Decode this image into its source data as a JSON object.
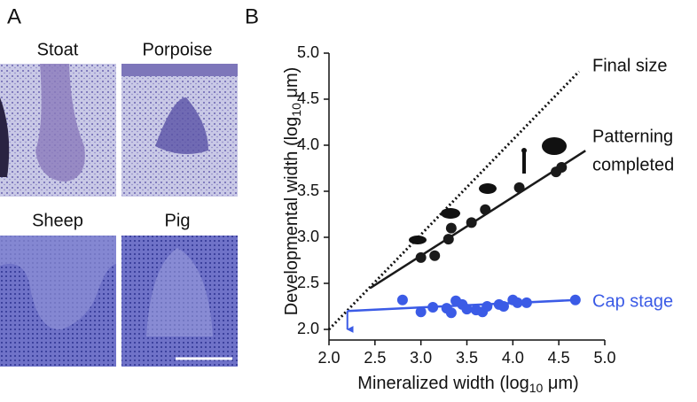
{
  "panel_a": {
    "label": "A",
    "images": [
      {
        "label": "Stoat"
      },
      {
        "label": "Porpoise"
      },
      {
        "label": "Sheep"
      },
      {
        "label": "Pig"
      }
    ]
  },
  "chart_data": {
    "type": "scatter",
    "panel_label": "B",
    "xlabel": {
      "text": "Mineralized width (log",
      "sub": "10",
      "tail": " μm)"
    },
    "ylabel": {
      "text": "Developmental width (log",
      "sub": "10",
      "tail": " μm)"
    },
    "xlim": [
      2.0,
      5.0
    ],
    "ylim": [
      2.0,
      5.0
    ],
    "xticks": [
      {
        "value": 2,
        "label": "2.0"
      },
      {
        "value": 2.5,
        "label": "2.5"
      },
      {
        "value": 3,
        "label": "3.0"
      },
      {
        "value": 3.5,
        "label": "3.5"
      },
      {
        "value": 4,
        "label": "4.0"
      },
      {
        "value": 4.5,
        "label": "4.5"
      },
      {
        "value": 5,
        "label": "5.0"
      }
    ],
    "yticks": [
      {
        "value": 2,
        "label": "2.0"
      },
      {
        "value": 2.5,
        "label": "2.5"
      },
      {
        "value": 3,
        "label": "3.0"
      },
      {
        "value": 3.5,
        "label": "3.5"
      },
      {
        "value": 4,
        "label": "4.0"
      },
      {
        "value": 4.5,
        "label": "4.5"
      },
      {
        "value": 5,
        "label": "5.0"
      }
    ],
    "reference": {
      "name": "Final size",
      "x": [
        2.0,
        4.72
      ],
      "values": [
        2.0,
        4.8
      ]
    },
    "series": [
      {
        "name": [
          "Patterning",
          "completed"
        ],
        "color": "#1a1a1a",
        "x": [
          3.0,
          3.15,
          3.3,
          3.33,
          3.55,
          3.7,
          4.07,
          4.47,
          4.53
        ],
        "values": [
          2.78,
          2.8,
          2.98,
          3.1,
          3.16,
          3.3,
          3.54,
          3.71,
          3.76
        ],
        "fit": {
          "x": [
            2.45,
            4.79
          ],
          "values": [
            2.45,
            3.94
          ]
        }
      },
      {
        "name": "Cap stage",
        "color": "#3b5be6",
        "x": [
          2.8,
          3.0,
          3.13,
          3.28,
          3.33,
          3.38,
          3.45,
          3.5,
          3.6,
          3.67,
          3.72,
          3.85,
          3.9,
          4.0,
          4.05,
          4.15,
          4.68
        ],
        "values": [
          2.32,
          2.19,
          2.24,
          2.23,
          2.18,
          2.31,
          2.27,
          2.22,
          2.21,
          2.19,
          2.25,
          2.27,
          2.25,
          2.32,
          2.29,
          2.29,
          2.32
        ],
        "fit": {
          "x": [
            2.2,
            4.7
          ],
          "values": [
            2.2,
            2.32
          ]
        },
        "arrow": {
          "x": [
            2.2,
            2.2
          ],
          "values": [
            2.2,
            2.0
          ]
        }
      }
    ]
  }
}
